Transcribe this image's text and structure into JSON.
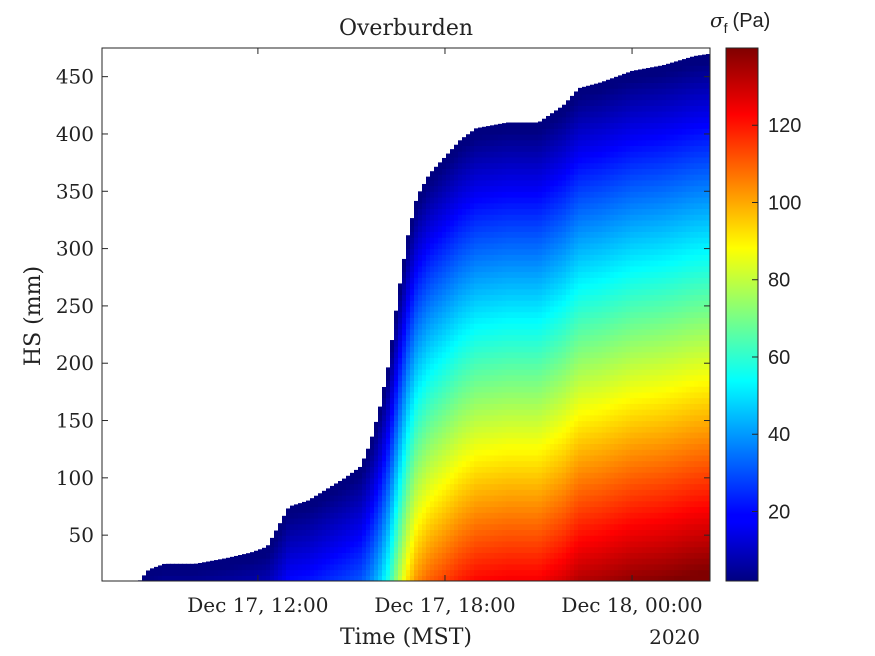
{
  "chart_data": {
    "type": "heatmap",
    "title": "Overburden",
    "xlabel": "Time (MST)",
    "ylabel": "HS (mm)",
    "x_ticks": [
      "Dec 17, 12:00",
      "Dec 17, 18:00",
      "Dec 18, 00:00"
    ],
    "x_year_label": "2020",
    "x_unit": "hours since Dec 17, 00:00",
    "xlim": [
      7.0,
      26.5
    ],
    "ylim": [
      10,
      475
    ],
    "y_ticks": [
      50,
      100,
      150,
      200,
      250,
      300,
      350,
      400,
      450
    ],
    "colorbar": {
      "label_symbol": "σ",
      "label_subscript": "f",
      "label_unit": "(Pa)",
      "colormap": "jet",
      "clim": [
        2,
        140
      ],
      "ticks": [
        20,
        40,
        60,
        80,
        100,
        120
      ]
    },
    "snow_height_profile": {
      "x": [
        8.2,
        8.5,
        9.0,
        10.0,
        11.0,
        11.8,
        12.3,
        12.6,
        13.0,
        13.6,
        14.2,
        14.8,
        15.3,
        15.6,
        15.9,
        16.2,
        16.5,
        16.8,
        17.1,
        17.5,
        18.0,
        18.5,
        19.0,
        20.0,
        21.0,
        21.8,
        22.3,
        23.0,
        24.0,
        25.0,
        26.0,
        26.5
      ],
      "hs": [
        10,
        20,
        25,
        25,
        30,
        35,
        40,
        55,
        75,
        80,
        90,
        100,
        110,
        130,
        160,
        200,
        260,
        310,
        345,
        365,
        380,
        395,
        405,
        410,
        410,
        425,
        440,
        445,
        455,
        460,
        468,
        470
      ]
    }
  }
}
